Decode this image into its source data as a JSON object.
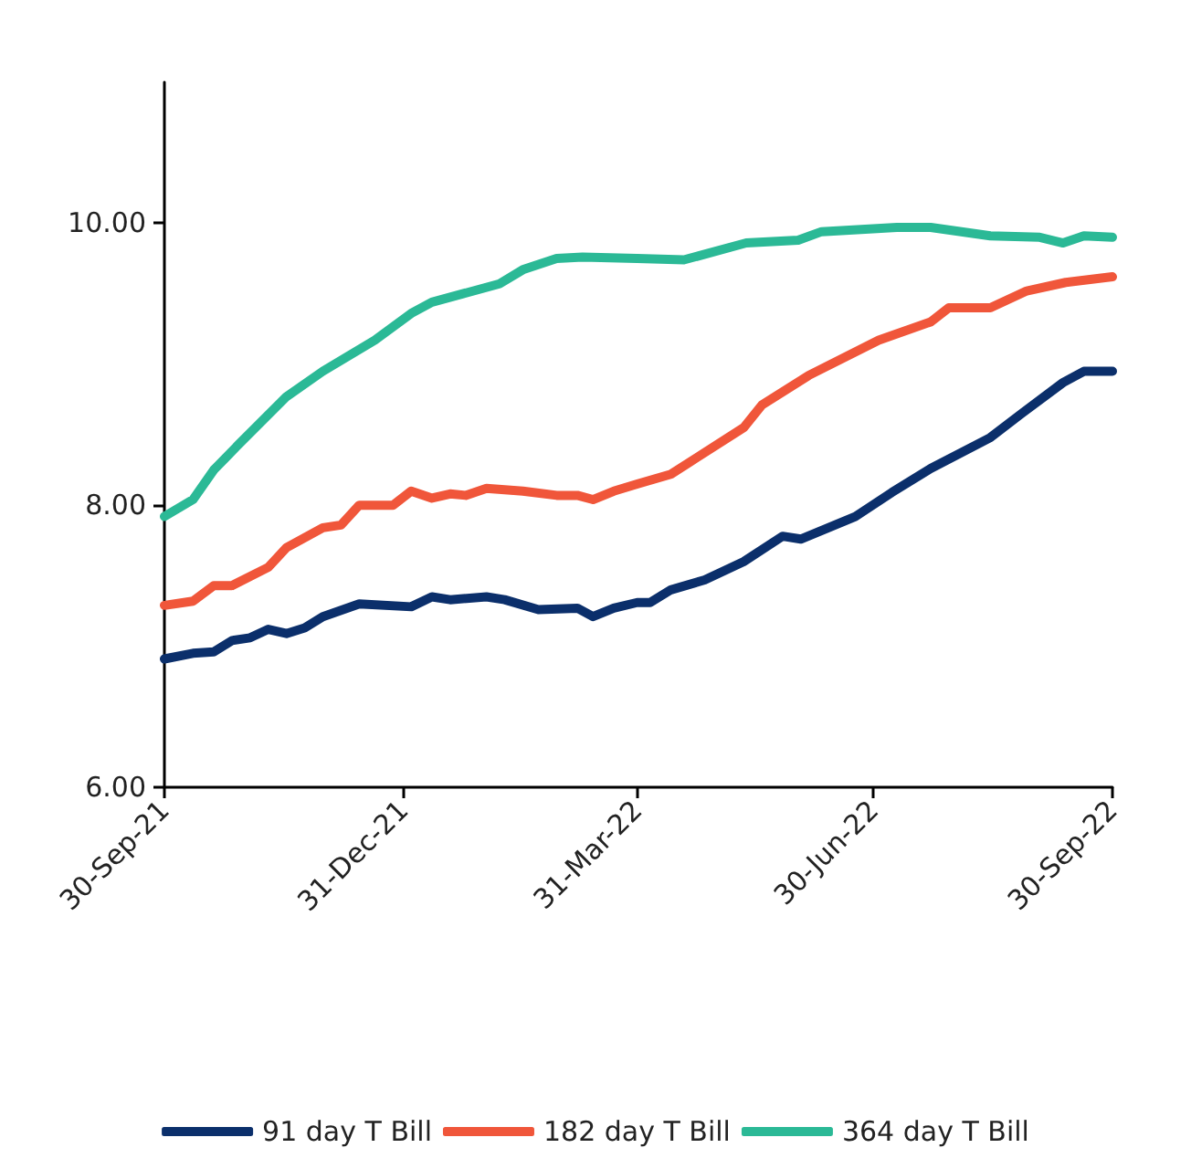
{
  "chart_data": {
    "type": "line",
    "grid": false,
    "legend": "bottom",
    "marker": "none",
    "line_style": "solid",
    "xlim": [
      "2021-09-30",
      "2022-09-30"
    ],
    "xticks": [
      {
        "value": "2021-09-30",
        "label": "30-Sep-21"
      },
      {
        "value": "2021-12-31",
        "label": "31-Dec-21"
      },
      {
        "value": "2022-03-31",
        "label": "31-Mar-22"
      },
      {
        "value": "2022-06-30",
        "label": "30-Jun-22"
      },
      {
        "value": "2022-09-30",
        "label": "30-Sep-22"
      }
    ],
    "ylim": [
      6,
      11
    ],
    "yticks": [
      {
        "value": 6,
        "label": "6.00"
      },
      {
        "value": 8,
        "label": "8.00"
      },
      {
        "value": 10,
        "label": "10.00"
      }
    ],
    "series": [
      {
        "name": "91 day T Bill",
        "color": "#0b2f6b",
        "x": [
          "2021-09-30",
          "2021-10-11",
          "2021-10-19",
          "2021-10-26",
          "2021-11-02",
          "2021-11-09",
          "2021-11-16",
          "2021-11-23",
          "2021-11-30",
          "2021-12-14",
          "2022-01-03",
          "2022-01-11",
          "2022-01-18",
          "2022-02-01",
          "2022-02-08",
          "2022-02-21",
          "2022-03-08",
          "2022-03-14",
          "2022-03-22",
          "2022-03-31",
          "2022-04-05",
          "2022-04-13",
          "2022-04-26",
          "2022-05-11",
          "2022-05-26",
          "2022-06-02",
          "2022-06-23",
          "2022-07-07",
          "2022-07-22",
          "2022-08-14",
          "2022-08-26",
          "2022-09-11",
          "2022-09-19",
          "2022-09-30"
        ],
        "values": [
          6.91,
          6.95,
          6.96,
          7.04,
          7.06,
          7.12,
          7.09,
          7.13,
          7.21,
          7.3,
          7.28,
          7.35,
          7.33,
          7.35,
          7.33,
          7.26,
          7.27,
          7.21,
          7.27,
          7.31,
          7.31,
          7.4,
          7.47,
          7.6,
          7.78,
          7.76,
          7.92,
          8.09,
          8.26,
          8.48,
          8.65,
          8.87,
          8.95,
          8.95
        ]
      },
      {
        "name": "182 day T Bill",
        "color": "#f0563a",
        "x": [
          "2021-09-30",
          "2021-10-11",
          "2021-10-19",
          "2021-10-26",
          "2021-11-09",
          "2021-11-16",
          "2021-11-30",
          "2021-12-07",
          "2021-12-14",
          "2021-12-27",
          "2022-01-03",
          "2022-01-11",
          "2022-01-18",
          "2022-01-24",
          "2022-02-01",
          "2022-02-15",
          "2022-02-28",
          "2022-03-08",
          "2022-03-14",
          "2022-03-22",
          "2022-03-31",
          "2022-04-13",
          "2022-05-11",
          "2022-05-18",
          "2022-06-05",
          "2022-07-02",
          "2022-07-22",
          "2022-07-29",
          "2022-08-14",
          "2022-08-28",
          "2022-09-12",
          "2022-09-30"
        ],
        "values": [
          7.29,
          7.32,
          7.43,
          7.43,
          7.56,
          7.7,
          7.84,
          7.86,
          8.0,
          8.0,
          8.1,
          8.05,
          8.08,
          8.07,
          8.12,
          8.1,
          8.07,
          8.07,
          8.04,
          8.1,
          8.15,
          8.22,
          8.55,
          8.71,
          8.92,
          9.17,
          9.3,
          9.4,
          9.4,
          9.52,
          9.58,
          9.62
        ]
      },
      {
        "name": "364 day T Bill",
        "color": "#2bb996",
        "x": [
          "2021-09-30",
          "2021-10-11",
          "2021-10-19",
          "2021-10-28",
          "2021-11-16",
          "2021-11-30",
          "2021-12-20",
          "2022-01-03",
          "2022-01-11",
          "2022-02-06",
          "2022-02-15",
          "2022-02-28",
          "2022-03-10",
          "2022-03-31",
          "2022-04-18",
          "2022-05-12",
          "2022-06-01",
          "2022-06-10",
          "2022-07-09",
          "2022-07-22",
          "2022-08-14",
          "2022-09-02",
          "2022-09-11",
          "2022-09-19",
          "2022-09-30"
        ],
        "values": [
          7.92,
          8.04,
          8.25,
          8.42,
          8.77,
          8.95,
          9.17,
          9.36,
          9.44,
          9.57,
          9.67,
          9.75,
          9.76,
          9.75,
          9.74,
          9.86,
          9.88,
          9.94,
          9.97,
          9.97,
          9.91,
          9.9,
          9.86,
          9.91,
          9.9
        ]
      }
    ]
  }
}
